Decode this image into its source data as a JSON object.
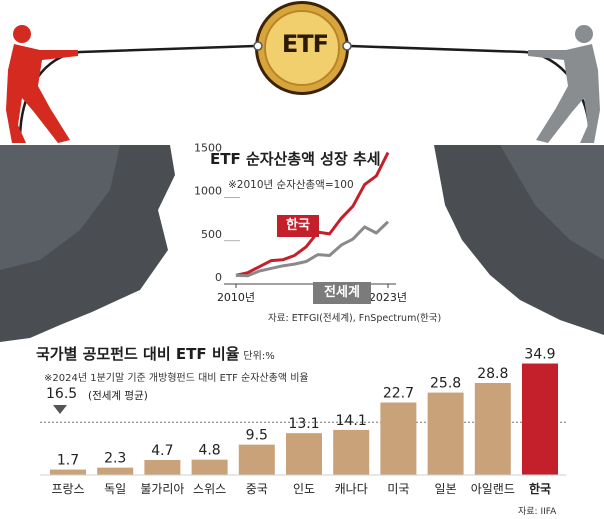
{
  "badge": {
    "text": "ETF"
  },
  "line_chart": {
    "title": "ETF 순자산총액 성장 추세",
    "note": "※2010년 순자산총액=100",
    "source": "자료: ETFGI(전세계), FnSpectrum(한국)"
  },
  "bar_chart": {
    "title": "국가별 공모펀드 대비 ETF 비율",
    "unit": "단위:%",
    "note": "※2024년 1분기말 기준 개방형펀드 대비 ETF 순자산총액 비율",
    "average_value": "16.5",
    "average_label": "(전세계 평균)",
    "source": "자료: IIFA"
  },
  "colors": {
    "korea": "#c4202c",
    "world": "#8a8a8a",
    "bars": "#c9a27a",
    "highlight_bar": "#c4202c"
  },
  "chart_data": [
    {
      "type": "line",
      "title": "ETF 순자산총액 성장 추세",
      "note": "※2010년 순자산총액=100",
      "x_tick_labels": [
        "2010년",
        "2023년"
      ],
      "xlim": [
        2010,
        2023
      ],
      "y_ticks": [
        0,
        500,
        1000,
        1500
      ],
      "ylim": [
        0,
        1550
      ],
      "series": [
        {
          "name": "한국",
          "x": [
            2010,
            2011,
            2012,
            2013,
            2014,
            2015,
            2016,
            2017,
            2018,
            2019,
            2020,
            2021,
            2022,
            2023
          ],
          "y": [
            100,
            130,
            200,
            270,
            280,
            330,
            430,
            600,
            580,
            760,
            900,
            1150,
            1250,
            1520
          ]
        },
        {
          "name": "전세계",
          "x": [
            2010,
            2011,
            2012,
            2013,
            2014,
            2015,
            2016,
            2017,
            2018,
            2019,
            2020,
            2021,
            2022,
            2023
          ],
          "y": [
            100,
            95,
            150,
            180,
            210,
            230,
            260,
            340,
            330,
            450,
            520,
            660,
            590,
            720
          ]
        }
      ]
    },
    {
      "type": "bar",
      "title": "국가별 공모펀드 대비 ETF 비율",
      "unit": "단위:%",
      "categories": [
        "프랑스",
        "독일",
        "불가리아",
        "스위스",
        "중국",
        "인도",
        "캐나다",
        "미국",
        "일본",
        "아일랜드",
        "한국"
      ],
      "values": [
        1.7,
        2.3,
        4.7,
        4.8,
        9.5,
        13.1,
        14.1,
        22.7,
        25.8,
        28.8,
        34.9
      ],
      "value_labels": [
        "1.7",
        "2.3",
        "4.7",
        "4.8",
        "9.5",
        "13.1",
        "14.1",
        "22.7",
        "25.8",
        "28.8",
        "34.9"
      ],
      "highlight": "한국",
      "reference_line": {
        "value": 16.5,
        "label": "(전세계 평균)"
      },
      "ylim": [
        0,
        36
      ]
    }
  ]
}
